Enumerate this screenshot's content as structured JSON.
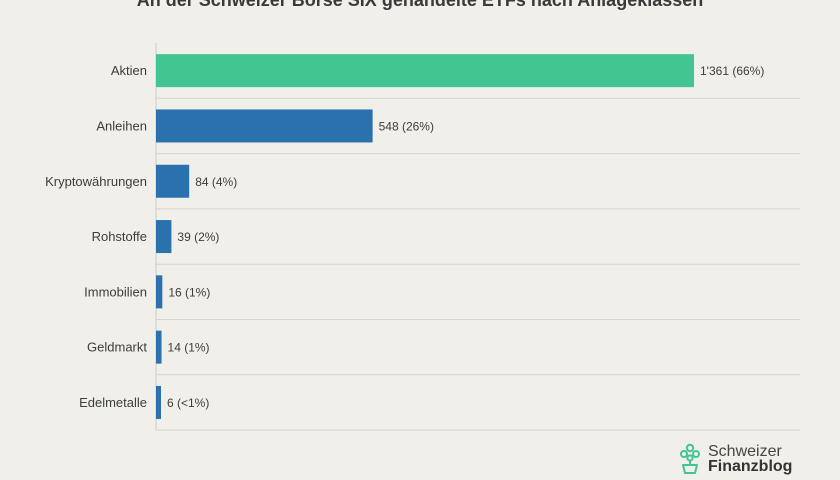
{
  "chart_data": {
    "type": "bar",
    "orientation": "horizontal",
    "title": "An der Schweizer Börse SIX gehandelte ETFs nach Anlageklassen",
    "categories": [
      "Aktien",
      "Anleihen",
      "Kryptowährungen",
      "Rohstoffe",
      "Immobilien",
      "Geldmarkt",
      "Edelmetalle"
    ],
    "values": [
      1361,
      548,
      84,
      39,
      16,
      14,
      6
    ],
    "value_labels": [
      "1'361",
      "548",
      "84",
      "39",
      "16",
      "14",
      "6"
    ],
    "percent_labels": [
      "(66%)",
      "(26%)",
      "(4%)",
      "(2%)",
      "(1%)",
      "(1%)",
      "(<1%)"
    ],
    "colors": [
      "#43c592",
      "#2a72ad",
      "#2a72ad",
      "#2a72ad",
      "#2a72ad",
      "#2a72ad",
      "#2a72ad"
    ],
    "xlim": [
      0,
      1361
    ],
    "grid": false,
    "legend": "none"
  },
  "brand": {
    "line1": "Schweizer",
    "line2": "Finanzblog",
    "icon": "plant-pot-icon",
    "icon_color": "#43c592"
  }
}
